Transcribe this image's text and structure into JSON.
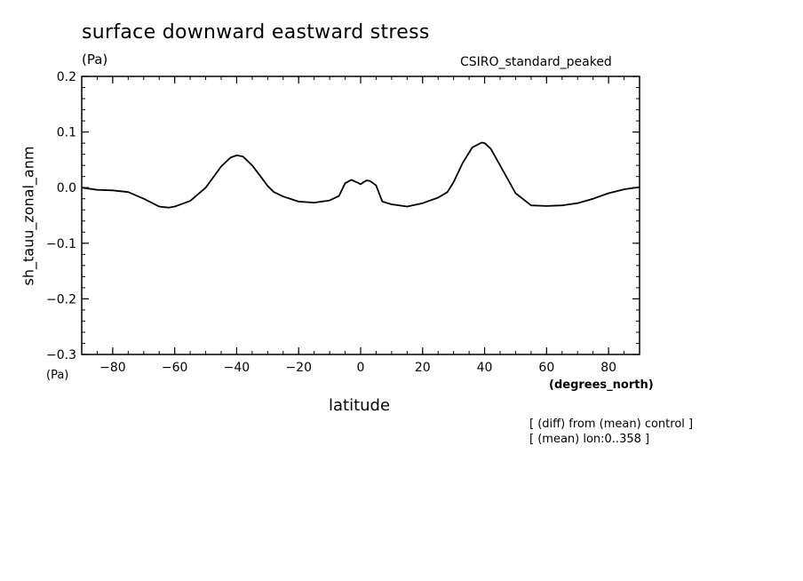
{
  "chart_data": {
    "type": "line",
    "title": "surface downward eastward stress",
    "units": "(Pa)",
    "model": "CSIRO_standard_peaked",
    "ylabel": "sh_tauu_zonal_anm",
    "yunits": "(Pa)",
    "xlabel": "latitude",
    "xunits": "(degrees_north)",
    "notes": [
      "[ (diff) from (mean) control ]",
      "[ (mean) lon:0..358 ]"
    ],
    "xlim": [
      -90,
      90
    ],
    "ylim": [
      -0.3,
      0.2
    ],
    "xticks": [
      -80,
      -60,
      -40,
      -20,
      0,
      20,
      40,
      60,
      80
    ],
    "xtick_labels": [
      "−80",
      "−60",
      "−40",
      "−20",
      "0",
      "20",
      "40",
      "60",
      "80"
    ],
    "yticks": [
      -0.3,
      -0.2,
      -0.1,
      0.0,
      0.1,
      0.2
    ],
    "ytick_labels": [
      "−0.3",
      "−0.2",
      "−0.1",
      "0.0",
      "0.1",
      "0.2"
    ],
    "grid": false,
    "series": [
      {
        "x": [
          -90,
          -85,
          -80,
          -75,
          -70,
          -65,
          -62,
          -60,
          -55,
          -50,
          -45,
          -42,
          -40,
          -38,
          -35,
          -32,
          -30,
          -28,
          -25,
          -20,
          -15,
          -10,
          -7,
          -5,
          -3,
          -1,
          0,
          1,
          2,
          3,
          4,
          5,
          7,
          10,
          15,
          20,
          25,
          28,
          30,
          33,
          36,
          39,
          40,
          42,
          45,
          50,
          55,
          60,
          65,
          70,
          75,
          80,
          85,
          90
        ],
        "y": [
          0.0,
          -0.004,
          -0.005,
          -0.008,
          -0.02,
          -0.034,
          -0.036,
          -0.034,
          -0.024,
          0.0,
          0.038,
          0.054,
          0.058,
          0.056,
          0.04,
          0.018,
          0.003,
          -0.008,
          -0.016,
          -0.025,
          -0.027,
          -0.023,
          -0.015,
          0.008,
          0.014,
          0.009,
          0.006,
          0.01,
          0.013,
          0.012,
          0.008,
          0.004,
          -0.025,
          -0.03,
          -0.034,
          -0.028,
          -0.018,
          -0.008,
          0.01,
          0.045,
          0.072,
          0.081,
          0.08,
          0.07,
          0.04,
          -0.01,
          -0.032,
          -0.033,
          -0.032,
          -0.028,
          -0.02,
          -0.01,
          -0.003,
          0.001
        ]
      }
    ]
  }
}
